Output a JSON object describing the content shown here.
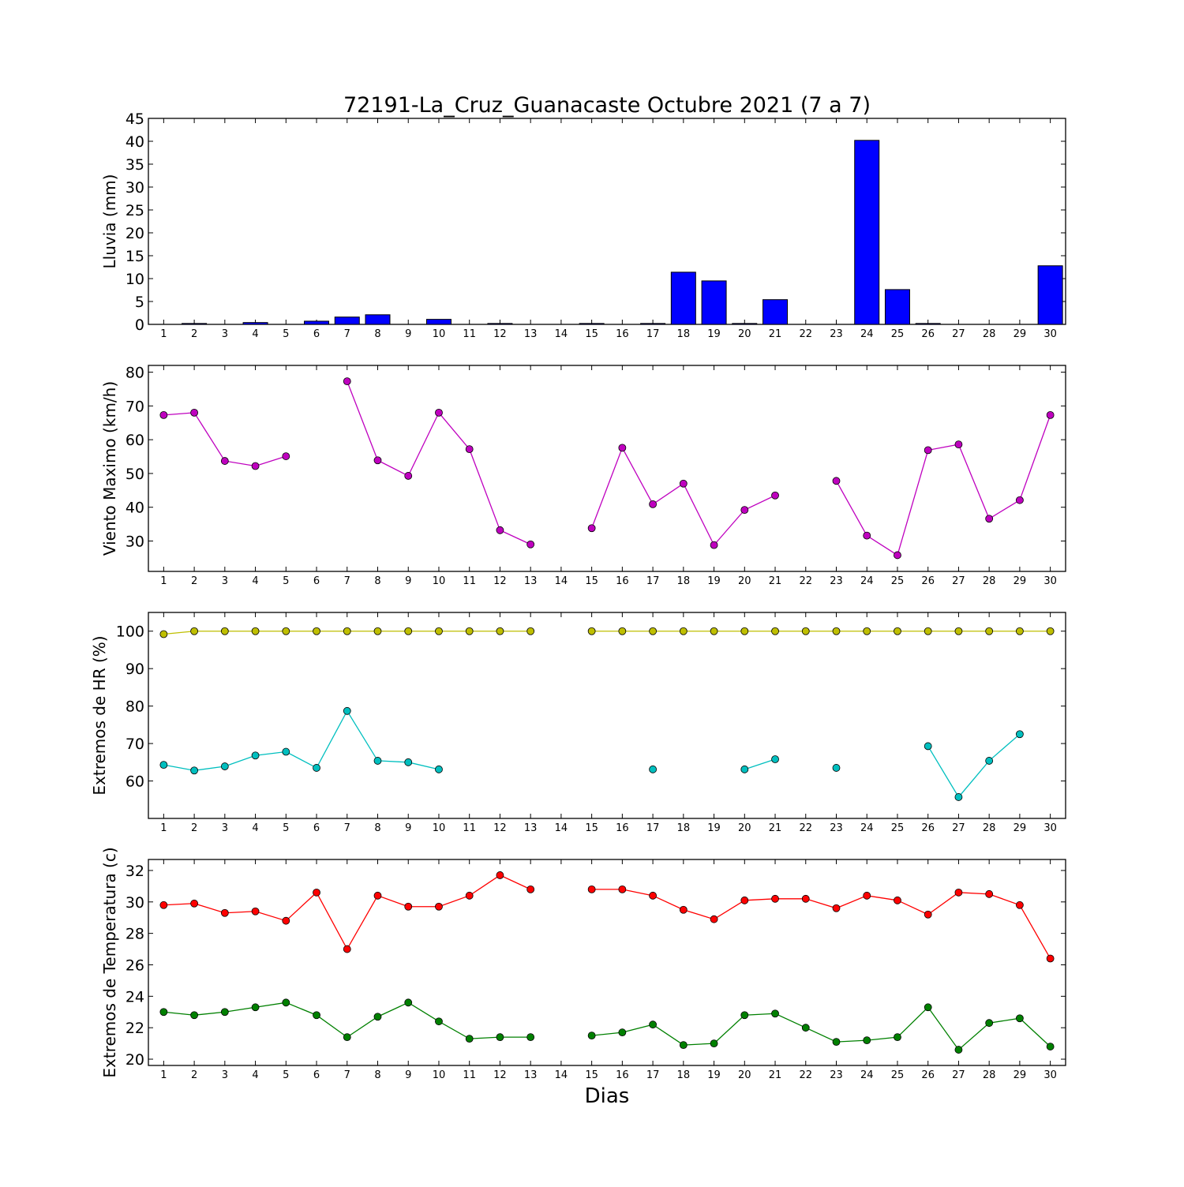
{
  "title": "72191-La_Cruz_Guanacaste Octubre 2021  (7 a 7)",
  "xlabel": "Dias",
  "colors": {
    "rain": "#0000ff",
    "wind": "#bf00bf",
    "hr_max": "#bfbf00",
    "hr_min": "#00bfbf",
    "temp_max": "#ff0000",
    "temp_min": "#008000"
  },
  "chart_data": [
    {
      "type": "bar",
      "ylabel": "Lluvia (mm)",
      "ylim": [
        0,
        45
      ],
      "yticks": [
        0,
        5,
        10,
        15,
        20,
        25,
        30,
        35,
        40,
        45
      ],
      "categories": [
        "1",
        "2",
        "3",
        "4",
        "5",
        "6",
        "7",
        "8",
        "9",
        "10",
        "11",
        "12",
        "13",
        "14",
        "15",
        "16",
        "17",
        "18",
        "19",
        "20",
        "21",
        "22",
        "23",
        "24",
        "25",
        "26",
        "27",
        "28",
        "29",
        "30"
      ],
      "series": [
        {
          "color": "#0000ff",
          "values": [
            0,
            0.2,
            0,
            0.4,
            0,
            0.7,
            1.6,
            2.1,
            0,
            1.1,
            0,
            0.2,
            0,
            0,
            0.2,
            0,
            0.2,
            11.4,
            9.5,
            0.2,
            5.4,
            0,
            0,
            40.2,
            7.6,
            0.2,
            0,
            0,
            0,
            12.8
          ]
        }
      ],
      "grid": false
    },
    {
      "type": "line",
      "ylabel": "Viento Maximo (km/h)",
      "ylim": [
        21,
        82
      ],
      "yticks": [
        30,
        40,
        50,
        60,
        70,
        80
      ],
      "x": [
        1,
        2,
        3,
        4,
        5,
        6,
        7,
        8,
        9,
        10,
        11,
        12,
        13,
        14,
        15,
        16,
        17,
        18,
        19,
        20,
        21,
        22,
        23,
        24,
        25,
        26,
        27,
        28,
        29,
        30
      ],
      "series": [
        {
          "color": "#bf00bf",
          "values": [
            67.3,
            68.0,
            53.7,
            52.2,
            55.1,
            null,
            77.3,
            53.9,
            49.3,
            68.0,
            57.2,
            33.2,
            29.0,
            null,
            33.8,
            57.6,
            40.9,
            47.0,
            28.8,
            39.2,
            43.5,
            null,
            47.8,
            31.6,
            25.8,
            56.9,
            58.6,
            36.6,
            42.1,
            67.3
          ]
        }
      ],
      "grid": false
    },
    {
      "type": "line",
      "ylabel": "Extremos de HR (%)",
      "ylim": [
        50,
        105
      ],
      "yticks": [
        60,
        70,
        80,
        90,
        100
      ],
      "x": [
        1,
        2,
        3,
        4,
        5,
        6,
        7,
        8,
        9,
        10,
        11,
        12,
        13,
        14,
        15,
        16,
        17,
        18,
        19,
        20,
        21,
        22,
        23,
        24,
        25,
        26,
        27,
        28,
        29,
        30
      ],
      "series": [
        {
          "color": "#bfbf00",
          "values": [
            99.2,
            100,
            100,
            100,
            100,
            100,
            100,
            100,
            100,
            100,
            100,
            100,
            100,
            null,
            100,
            100,
            100,
            100,
            100,
            100,
            100,
            100,
            100,
            100,
            100,
            100,
            100,
            100,
            100,
            100
          ]
        },
        {
          "color": "#00bfbf",
          "values": [
            64.3,
            62.8,
            63.9,
            66.8,
            67.8,
            63.5,
            78.7,
            65.4,
            65.0,
            63.1,
            null,
            null,
            null,
            null,
            null,
            null,
            63.1,
            null,
            null,
            63.1,
            65.8,
            null,
            63.5,
            null,
            null,
            69.3,
            55.7,
            65.4,
            72.5,
            null
          ]
        }
      ],
      "grid": false
    },
    {
      "type": "line",
      "ylabel": "Extremos de Temperatura (c)",
      "ylim": [
        19.6,
        32.7
      ],
      "yticks": [
        20,
        22,
        24,
        26,
        28,
        30,
        32
      ],
      "x": [
        1,
        2,
        3,
        4,
        5,
        6,
        7,
        8,
        9,
        10,
        11,
        12,
        13,
        14,
        15,
        16,
        17,
        18,
        19,
        20,
        21,
        22,
        23,
        24,
        25,
        26,
        27,
        28,
        29,
        30
      ],
      "series": [
        {
          "color": "#ff0000",
          "values": [
            29.8,
            29.9,
            29.3,
            29.4,
            28.8,
            30.6,
            27.0,
            30.4,
            29.7,
            29.7,
            30.4,
            31.7,
            30.8,
            null,
            30.8,
            30.8,
            30.4,
            29.5,
            28.9,
            30.1,
            30.2,
            30.2,
            29.6,
            30.4,
            30.1,
            29.2,
            30.6,
            30.5,
            29.8,
            26.4
          ]
        },
        {
          "color": "#008000",
          "values": [
            23.0,
            22.8,
            23.0,
            23.3,
            23.6,
            22.8,
            21.4,
            22.7,
            23.6,
            22.4,
            21.3,
            21.4,
            21.4,
            null,
            21.5,
            21.7,
            22.2,
            20.9,
            21.0,
            22.8,
            22.9,
            22.0,
            21.1,
            21.2,
            21.4,
            23.3,
            20.6,
            22.3,
            22.6,
            20.8
          ]
        }
      ],
      "grid": false
    }
  ]
}
